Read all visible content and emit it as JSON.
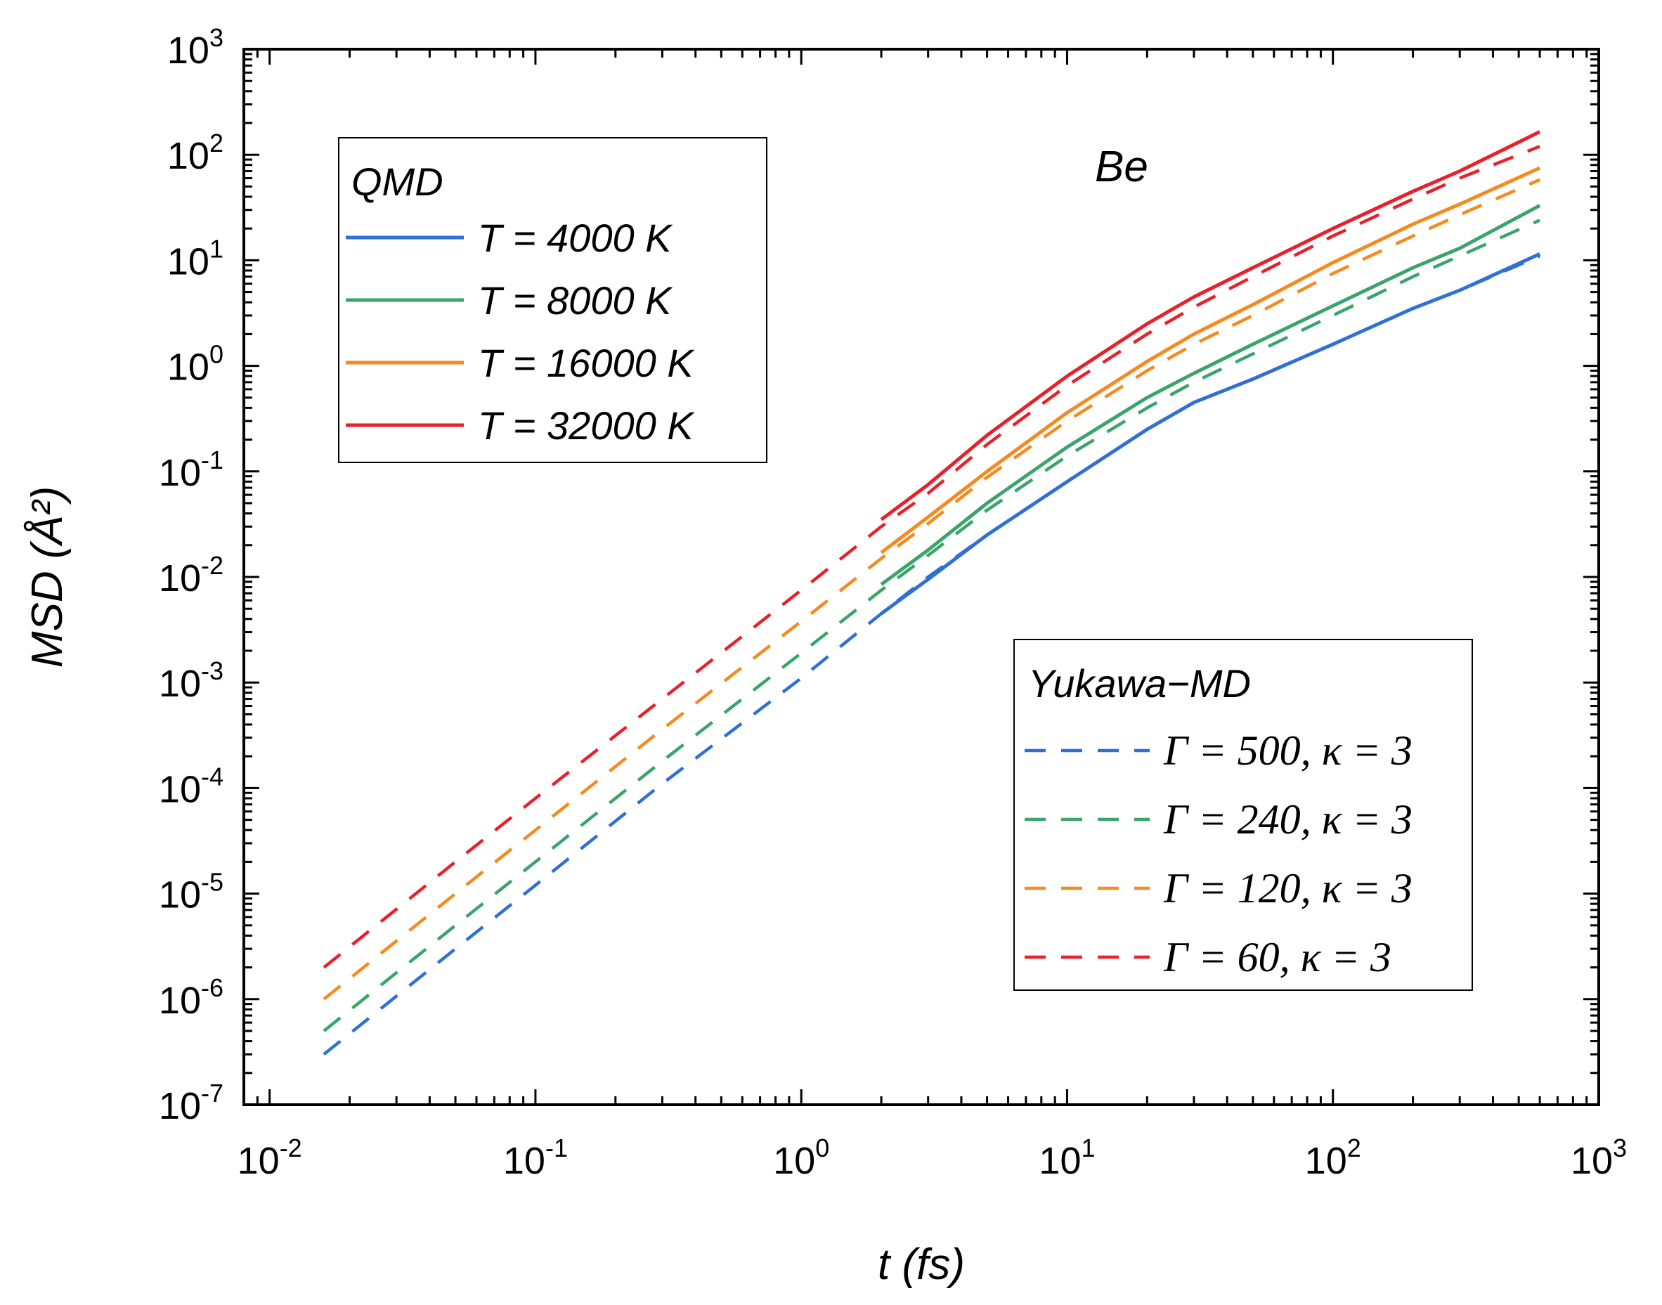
{
  "chart_data": {
    "type": "line",
    "xscale": "log",
    "yscale": "log",
    "xlabel": "t (fs)",
    "ylabel": "MSD (Å²)",
    "xlim": [
      0.008,
      1000
    ],
    "ylim": [
      1e-07,
      1000
    ],
    "x_tick_labels": [
      {
        "base": "10",
        "exp": "-2",
        "value": 0.01
      },
      {
        "base": "10",
        "exp": "-1",
        "value": 0.1
      },
      {
        "base": "10",
        "exp": "0",
        "value": 1
      },
      {
        "base": "10",
        "exp": "1",
        "value": 10
      },
      {
        "base": "10",
        "exp": "2",
        "value": 100
      },
      {
        "base": "10",
        "exp": "3",
        "value": 1000
      }
    ],
    "y_tick_labels": [
      {
        "base": "10",
        "exp": "-7",
        "value": 1e-07
      },
      {
        "base": "10",
        "exp": "-6",
        "value": 1e-06
      },
      {
        "base": "10",
        "exp": "-5",
        "value": 1e-05
      },
      {
        "base": "10",
        "exp": "-4",
        "value": 0.0001
      },
      {
        "base": "10",
        "exp": "-3",
        "value": 0.001
      },
      {
        "base": "10",
        "exp": "-2",
        "value": 0.01
      },
      {
        "base": "10",
        "exp": "-1",
        "value": 0.1
      },
      {
        "base": "10",
        "exp": "0",
        "value": 1
      },
      {
        "base": "10",
        "exp": "1",
        "value": 10
      },
      {
        "base": "10",
        "exp": "2",
        "value": 100
      },
      {
        "base": "10",
        "exp": "3",
        "value": 1000
      }
    ],
    "annotation": "Be",
    "legend_qmd": {
      "title": "QMD",
      "entries": [
        "T = 4000 K",
        "T = 8000 K",
        "T = 16000 K",
        "T = 32000 K"
      ]
    },
    "legend_yukawa": {
      "title": "Yukawa−MD",
      "entries": [
        "Γ = 500, κ = 3",
        "Γ = 240, κ = 3",
        "Γ = 120, κ = 3",
        "Γ = 60, κ = 3"
      ]
    },
    "colors": {
      "blue": "#2f6fd6",
      "green": "#3aa46a",
      "orange": "#f58a1f",
      "red": "#e8202a"
    },
    "series": [
      {
        "name": "T = 4000 K",
        "group": "QMD",
        "style": "solid",
        "color": "#2f6fd6",
        "x": [
          2,
          3,
          5,
          10,
          20,
          30,
          50,
          100,
          200,
          300,
          600
        ],
        "y": [
          0.0045,
          0.0095,
          0.025,
          0.08,
          0.25,
          0.45,
          0.75,
          1.6,
          3.5,
          5.2,
          11.5
        ]
      },
      {
        "name": "T = 8000 K",
        "group": "QMD",
        "style": "solid",
        "color": "#3aa46a",
        "x": [
          2,
          3,
          5,
          10,
          20,
          30,
          50,
          100,
          200,
          300,
          600
        ],
        "y": [
          0.0085,
          0.018,
          0.05,
          0.17,
          0.5,
          0.85,
          1.6,
          3.7,
          8.5,
          13,
          33
        ]
      },
      {
        "name": "T = 16000 K",
        "group": "QMD",
        "style": "solid",
        "color": "#f58a1f",
        "x": [
          2,
          3,
          5,
          10,
          20,
          30,
          50,
          100,
          200,
          300,
          600
        ],
        "y": [
          0.017,
          0.037,
          0.1,
          0.36,
          1.1,
          2.0,
          3.8,
          9.5,
          22,
          34,
          75
        ]
      },
      {
        "name": "T = 32000 K",
        "group": "QMD",
        "style": "solid",
        "color": "#e8202a",
        "x": [
          2,
          3,
          5,
          10,
          20,
          30,
          50,
          100,
          200,
          300,
          600
        ],
        "y": [
          0.035,
          0.075,
          0.22,
          0.8,
          2.5,
          4.5,
          8.5,
          20,
          45,
          70,
          165
        ]
      },
      {
        "name": "Γ = 500, κ = 3",
        "group": "Yukawa-MD",
        "style": "dashed",
        "color": "#2f6fd6",
        "x": [
          0.016,
          0.05,
          0.1,
          0.3,
          1,
          2,
          3,
          5,
          10,
          20,
          30,
          50,
          100,
          200,
          300,
          600
        ],
        "y": [
          3e-07,
          3e-06,
          1.2e-05,
          0.00011,
          0.0011,
          0.0045,
          0.01,
          0.025,
          0.08,
          0.25,
          0.45,
          0.75,
          1.6,
          3.5,
          5.2,
          11
        ]
      },
      {
        "name": "Γ = 240, κ = 3",
        "group": "Yukawa-MD",
        "style": "dashed",
        "color": "#3aa46a",
        "x": [
          0.016,
          0.05,
          0.1,
          0.3,
          1,
          2,
          3,
          5,
          10,
          20,
          30,
          50,
          100,
          200,
          300,
          600
        ],
        "y": [
          5e-07,
          5e-06,
          2e-05,
          0.00018,
          0.0019,
          0.0075,
          0.016,
          0.043,
          0.14,
          0.4,
          0.7,
          1.3,
          3.0,
          7.0,
          11,
          24
        ]
      },
      {
        "name": "Γ = 120, κ = 3",
        "group": "Yukawa-MD",
        "style": "dashed",
        "color": "#f58a1f",
        "x": [
          0.016,
          0.05,
          0.1,
          0.3,
          1,
          2,
          3,
          5,
          10,
          20,
          30,
          50,
          100,
          200,
          300,
          600
        ],
        "y": [
          1e-06,
          1e-05,
          4e-05,
          0.00036,
          0.0038,
          0.015,
          0.032,
          0.088,
          0.3,
          0.9,
          1.6,
          3.0,
          7.5,
          17,
          27,
          58
        ]
      },
      {
        "name": "Γ = 60, κ = 3",
        "group": "Yukawa-MD",
        "style": "dashed",
        "color": "#e8202a",
        "x": [
          0.016,
          0.05,
          0.1,
          0.3,
          1,
          2,
          3,
          5,
          10,
          20,
          30,
          50,
          100,
          200,
          300,
          600
        ],
        "y": [
          2e-06,
          2e-05,
          8e-05,
          0.0007,
          0.0075,
          0.03,
          0.062,
          0.18,
          0.65,
          2.0,
          3.6,
          7.0,
          17,
          38,
          60,
          120
        ]
      }
    ]
  }
}
